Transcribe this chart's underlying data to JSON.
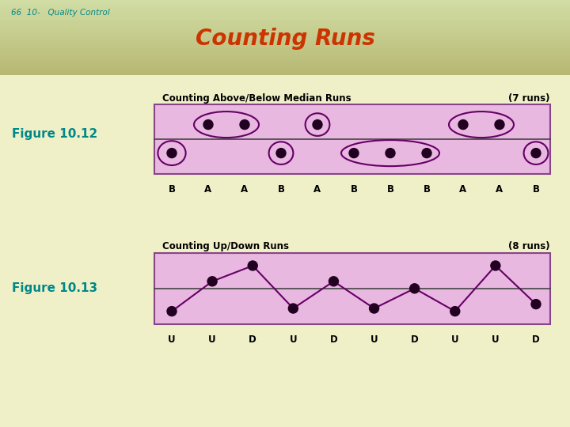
{
  "title": "Counting Runs",
  "subtitle": "66  10-   Quality Control",
  "bg_color": "#f0f0c8",
  "header_bg_top": "#b8d080",
  "header_bg_bot": "#d8e8a0",
  "title_color": "#cc3300",
  "subtitle_color": "#008888",
  "fig1_label": "Figure 10.12",
  "fig2_label": "Figure 10.13",
  "fig1_title": "Counting Above/Below Median Runs",
  "fig1_runs": "(7 runs)",
  "fig2_title": "Counting Up/Down Runs",
  "fig2_runs": "(8 runs)",
  "fig1_letters": [
    "B",
    "A",
    "A",
    "B",
    "A",
    "B",
    "B",
    "B",
    "A",
    "A",
    "B"
  ],
  "fig2_letters": [
    "U",
    "U",
    "D",
    "U",
    "D",
    "U",
    "D",
    "U",
    "U",
    "D"
  ],
  "box_color": "#e8b8e0",
  "box_edge": "#884488",
  "dot_color": "#220022",
  "circle_color": "#660066",
  "line_color": "#660066",
  "median_line_color": "#444444"
}
